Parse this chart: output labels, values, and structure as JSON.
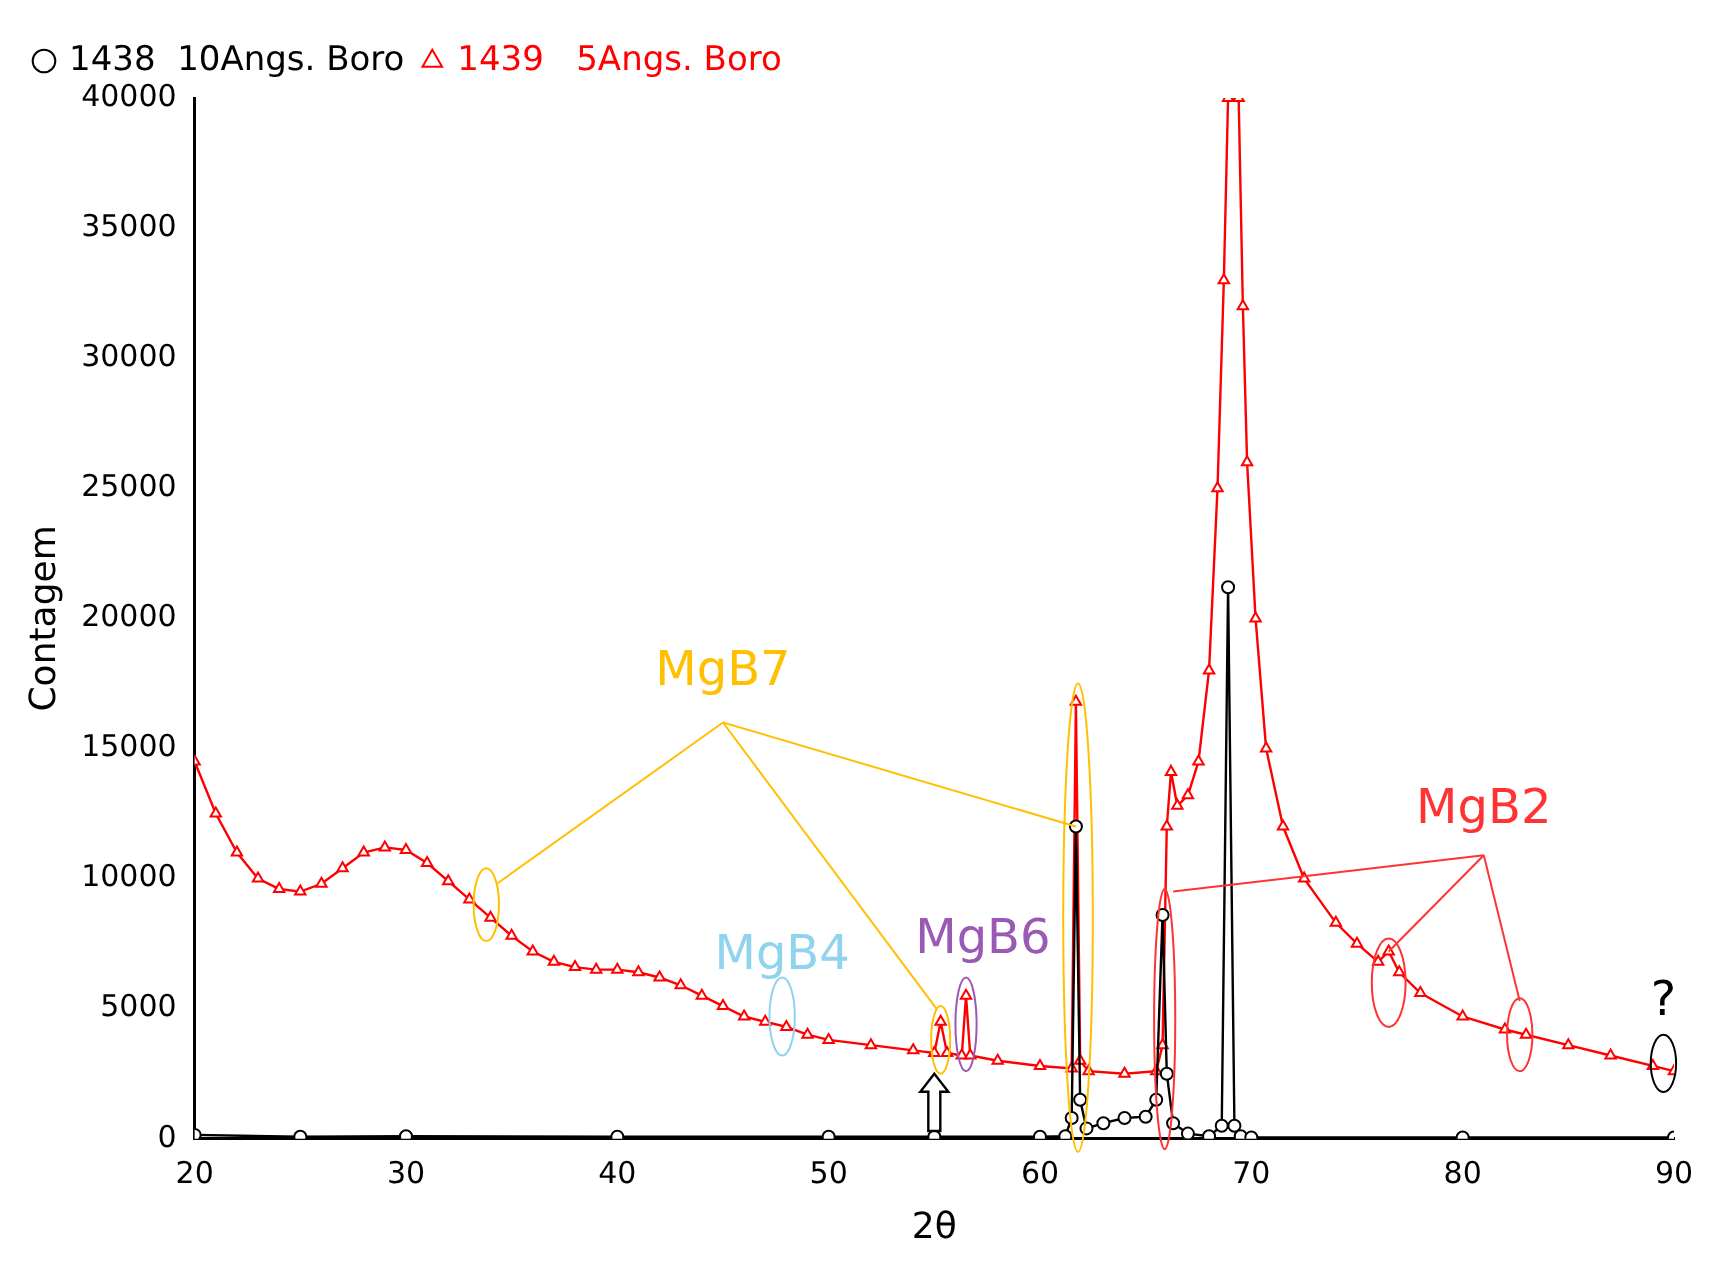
{
  "chart_data": {
    "type": "line",
    "xlabel": "2θ",
    "ylabel": "Contagem",
    "xlim": [
      20,
      90
    ],
    "xticks": [
      20,
      30,
      40,
      50,
      60,
      70,
      80,
      90
    ],
    "ylim": [
      0,
      40000
    ],
    "yticks": [
      0,
      5000,
      10000,
      15000,
      20000,
      25000,
      30000,
      35000,
      40000
    ],
    "grid": false,
    "legend": "top left",
    "annotations": [
      {
        "text": "MgB7",
        "x": 61.7,
        "y": 12000
      },
      "MgB4",
      "MgB6",
      {
        "text": "MgB2",
        "x": 76.5,
        "y": 7200
      },
      "?"
    ],
    "series": [
      {
        "name": "1438  10Angs. Boro",
        "color": "#000000",
        "marker": "circle",
        "x": [
          20,
          25,
          30,
          40,
          50,
          55,
          60,
          61.2,
          61.5,
          61.7,
          61.9,
          62.2,
          63,
          64,
          65,
          65.5,
          65.8,
          66,
          66.3,
          67,
          68,
          68.6,
          68.9,
          69.2,
          69.5,
          70,
          80,
          90
        ],
        "values": [
          150,
          80,
          100,
          80,
          80,
          80,
          80,
          100,
          800,
          12000,
          1500,
          400,
          600,
          800,
          850,
          1500,
          8600,
          2500,
          600,
          200,
          100,
          500,
          21200,
          500,
          100,
          50,
          50,
          50
        ]
      },
      {
        "name": "1439   5Angs. Boro",
        "color": "#ff0000",
        "marker": "triangle",
        "x": [
          20,
          21,
          22,
          23,
          24,
          25,
          26,
          27,
          28,
          29,
          30,
          31,
          32,
          33,
          34,
          35,
          36,
          37,
          38,
          39,
          40,
          41,
          42,
          43,
          44,
          45,
          46,
          47,
          48,
          49,
          50,
          52,
          54,
          55,
          55.3,
          55.6,
          56.3,
          56.5,
          56.7,
          58,
          60,
          61.5,
          61.7,
          61.9,
          62.3,
          64,
          65.5,
          65.8,
          66,
          66.2,
          66.5,
          67,
          67.5,
          68,
          68.4,
          68.7,
          68.9,
          69.4,
          69.6,
          69.8,
          70.2,
          70.7,
          71.5,
          72.5,
          74,
          75,
          76,
          76.5,
          77,
          78,
          80,
          82,
          83,
          85,
          87,
          89,
          90
        ],
        "values": [
          14500,
          12500,
          11000,
          10000,
          9600,
          9500,
          9800,
          10400,
          11000,
          11200,
          11100,
          10600,
          9900,
          9200,
          8500,
          7800,
          7200,
          6800,
          6600,
          6500,
          6500,
          6400,
          6200,
          5900,
          5500,
          5100,
          4700,
          4500,
          4300,
          4000,
          3800,
          3600,
          3400,
          3300,
          4500,
          3300,
          3200,
          5500,
          3200,
          3000,
          2800,
          2700,
          16800,
          3000,
          2600,
          2500,
          2600,
          3600,
          12000,
          14100,
          12800,
          13200,
          14500,
          18000,
          25000,
          33000,
          40000,
          40000,
          32000,
          26000,
          20000,
          15000,
          12000,
          10000,
          8300,
          7500,
          6800,
          7200,
          6400,
          5600,
          4700,
          4200,
          4000,
          3600,
          3200,
          2800,
          2600
        ]
      }
    ]
  }
}
